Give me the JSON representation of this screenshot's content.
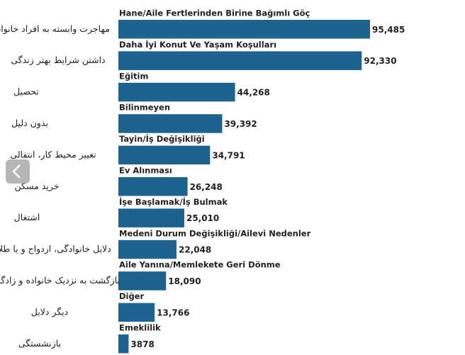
{
  "chart_data": {
    "type": "bar",
    "orientation": "horizontal",
    "color": "#1c6391",
    "categories": [
      "Hane/Aile Fertlerinden Birine Bağımlı Göç",
      "Daha İyi Konut Ve Yaşam Koşulları",
      "Eğitim",
      "Bilinmeyen",
      "Tayin/İş Değişikliği",
      "Ev Alınması",
      "İşe Başlamak/İş Bulmak",
      "Medeni Durum Değişikliği/Ailevi Nedenler",
      "Aile Yanına/Memlekete Geri Dönme",
      "Diğer",
      "Emeklilik"
    ],
    "translations": [
      "مهاجرت وابسته به افراد خانواده",
      "داشتن شرایط بهتر زندگی",
      "تحصیل",
      "بدون دلیل",
      "تغییر محیط کار، انتقالی",
      "خرید مسکن",
      "اشتغال",
      "دلایل خانوادگی، ازدواج و یا طلاق",
      "بازگشت به نزدیک خانواده و زادگاه",
      "دیگر دلایل",
      "بازنشستگی"
    ],
    "values": [
      95485,
      92330,
      44268,
      39392,
      34791,
      26248,
      25010,
      22048,
      18090,
      13766,
      3878
    ],
    "value_labels": [
      "95,485",
      "92,330",
      "44,268",
      "39,392",
      "34,791",
      "26,248",
      "25,010",
      "22,048",
      "18,090",
      "13,766",
      "3878"
    ]
  }
}
